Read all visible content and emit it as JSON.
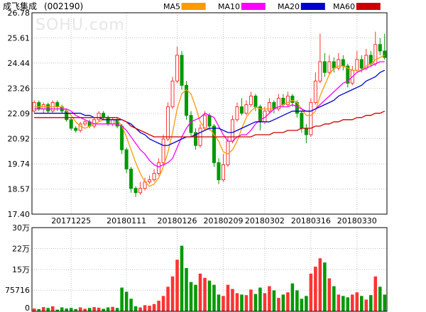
{
  "header": {
    "stock_name": "成飞集成",
    "stock_code": "(002190)",
    "watermark": "SOHU.com"
  },
  "legend": [
    {
      "label": "MA5",
      "color": "#ff9900"
    },
    {
      "label": "MA10",
      "color": "#ff00ff"
    },
    {
      "label": "MA20",
      "color": "#0000cc"
    },
    {
      "label": "MA60",
      "color": "#cc0000"
    }
  ],
  "colors": {
    "up": "#ff3333",
    "down": "#009900",
    "grid": "#bfbfbf",
    "border": "#000000"
  },
  "chart_data": [
    {
      "type": "candlestick",
      "title": "",
      "ylim": [
        17.4,
        26.78
      ],
      "y_ticks": [
        "26.78",
        "25.61",
        "24.44",
        "23.26",
        "22.09",
        "20.92",
        "19.74",
        "18.57",
        "17.40"
      ],
      "x_ticks": [
        {
          "label": "20171225",
          "index": 8
        },
        {
          "label": "20180111",
          "index": 20
        },
        {
          "label": "20180126",
          "index": 31
        },
        {
          "label": "20180209",
          "index": 41
        },
        {
          "label": "20180302",
          "index": 50
        },
        {
          "label": "20180316",
          "index": 60
        },
        {
          "label": "20180330",
          "index": 70
        }
      ],
      "candles": [
        [
          22.2,
          22.6,
          22.7,
          22.1
        ],
        [
          22.6,
          22.3,
          22.7,
          22.2
        ],
        [
          22.3,
          22.5,
          22.6,
          22.1
        ],
        [
          22.5,
          22.2,
          22.6,
          22.1
        ],
        [
          22.2,
          22.6,
          22.7,
          22.1
        ],
        [
          22.6,
          22.4,
          22.7,
          22.2
        ],
        [
          22.4,
          22.2,
          22.5,
          22.1
        ],
        [
          22.2,
          21.8,
          22.3,
          21.7
        ],
        [
          21.8,
          21.4,
          21.9,
          21.3
        ],
        [
          21.4,
          21.3,
          21.5,
          21.2
        ],
        [
          21.3,
          21.6,
          21.7,
          21.2
        ],
        [
          21.6,
          21.7,
          21.8,
          21.5
        ],
        [
          21.7,
          21.5,
          21.8,
          21.4
        ],
        [
          21.5,
          21.8,
          21.9,
          21.4
        ],
        [
          21.8,
          22.1,
          22.2,
          21.7
        ],
        [
          22.1,
          21.9,
          22.2,
          21.8
        ],
        [
          21.9,
          21.6,
          22.0,
          21.5
        ],
        [
          21.6,
          21.8,
          21.9,
          21.5
        ],
        [
          21.8,
          21.5,
          21.9,
          21.4
        ],
        [
          21.5,
          20.4,
          21.6,
          20.2
        ],
        [
          20.4,
          19.5,
          20.5,
          19.3
        ],
        [
          19.5,
          18.6,
          19.6,
          18.4
        ],
        [
          18.6,
          18.4,
          18.7,
          18.2
        ],
        [
          18.4,
          18.6,
          18.9,
          18.3
        ],
        [
          18.6,
          18.9,
          19.1,
          18.5
        ],
        [
          18.9,
          19.0,
          19.2,
          18.8
        ],
        [
          19.0,
          19.3,
          19.5,
          18.9
        ],
        [
          19.3,
          19.8,
          20.0,
          19.2
        ],
        [
          19.8,
          20.9,
          21.1,
          19.7
        ],
        [
          20.9,
          22.4,
          22.6,
          20.8
        ],
        [
          22.4,
          23.6,
          23.8,
          22.3
        ],
        [
          23.6,
          24.8,
          25.2,
          23.5
        ],
        [
          24.8,
          23.4,
          25.0,
          23.2
        ],
        [
          23.4,
          22.0,
          23.6,
          21.8
        ],
        [
          22.0,
          21.2,
          22.2,
          21.0
        ],
        [
          21.2,
          20.6,
          21.4,
          20.4
        ],
        [
          20.6,
          21.4,
          21.6,
          20.5
        ],
        [
          21.4,
          22.0,
          22.2,
          21.3
        ],
        [
          22.0,
          21.5,
          22.1,
          21.3
        ],
        [
          21.5,
          19.8,
          21.6,
          19.6
        ],
        [
          19.8,
          19.0,
          20.0,
          18.8
        ],
        [
          19.0,
          19.7,
          20.2,
          18.9
        ],
        [
          19.7,
          20.8,
          21.0,
          19.6
        ],
        [
          20.8,
          21.8,
          22.0,
          20.7
        ],
        [
          21.8,
          22.4,
          22.6,
          21.7
        ],
        [
          22.4,
          22.1,
          22.8,
          22.0
        ],
        [
          22.1,
          22.5,
          22.7,
          22.0
        ],
        [
          22.5,
          22.9,
          23.1,
          22.4
        ],
        [
          22.9,
          22.4,
          23.0,
          22.2
        ],
        [
          22.4,
          21.7,
          22.5,
          21.3
        ],
        [
          21.7,
          22.2,
          22.4,
          21.6
        ],
        [
          22.2,
          22.6,
          22.8,
          22.1
        ],
        [
          22.6,
          22.3,
          22.7,
          22.1
        ],
        [
          22.3,
          22.8,
          23.0,
          22.2
        ],
        [
          22.8,
          22.5,
          23.0,
          22.4
        ],
        [
          22.5,
          22.9,
          23.1,
          22.4
        ],
        [
          22.9,
          22.6,
          23.0,
          22.4
        ],
        [
          22.6,
          22.1,
          22.7,
          21.9
        ],
        [
          22.1,
          21.4,
          22.2,
          21.2
        ],
        [
          21.4,
          21.1,
          21.6,
          20.7
        ],
        [
          21.1,
          22.6,
          22.8,
          21.0
        ],
        [
          22.6,
          23.6,
          24.0,
          22.5
        ],
        [
          23.6,
          24.5,
          25.8,
          23.5
        ],
        [
          24.5,
          24.0,
          24.9,
          23.8
        ],
        [
          24.0,
          24.5,
          24.8,
          23.9
        ],
        [
          24.5,
          24.2,
          24.7,
          24.0
        ],
        [
          24.2,
          24.6,
          24.9,
          24.1
        ],
        [
          24.6,
          24.3,
          24.8,
          24.1
        ],
        [
          24.3,
          23.5,
          24.4,
          23.3
        ],
        [
          23.5,
          24.1,
          24.3,
          23.4
        ],
        [
          24.1,
          24.6,
          25.0,
          24.0
        ],
        [
          24.6,
          24.2,
          24.8,
          24.0
        ],
        [
          24.2,
          24.8,
          25.1,
          24.1
        ],
        [
          24.8,
          24.4,
          25.0,
          24.3
        ],
        [
          24.4,
          25.3,
          25.9,
          24.3
        ],
        [
          25.3,
          25.0,
          25.6,
          24.8
        ],
        [
          25.0,
          24.7,
          25.8,
          24.6
        ]
      ],
      "moving_averages": {
        "MA5": [
          22.4,
          22.4,
          22.4,
          22.4,
          22.4,
          22.4,
          22.4,
          22.2,
          22.0,
          21.7,
          21.5,
          21.4,
          21.5,
          21.6,
          21.7,
          21.8,
          21.8,
          21.8,
          21.8,
          21.5,
          21.0,
          20.4,
          19.8,
          19.3,
          18.9,
          18.7,
          18.8,
          19.1,
          19.6,
          20.3,
          21.2,
          22.3,
          23.0,
          23.2,
          23.0,
          22.4,
          21.7,
          21.4,
          21.4,
          21.1,
          20.8,
          20.3,
          20.2,
          20.4,
          20.8,
          21.4,
          21.9,
          22.2,
          22.4,
          22.3,
          22.3,
          22.3,
          22.3,
          22.4,
          22.5,
          22.6,
          22.7,
          22.6,
          22.3,
          22.0,
          22.0,
          22.2,
          22.9,
          23.4,
          23.9,
          24.2,
          24.3,
          24.3,
          24.2,
          24.1,
          24.1,
          24.1,
          24.3,
          24.4,
          24.6,
          24.7,
          24.8
        ],
        "MA10": [
          22.3,
          22.3,
          22.3,
          22.3,
          22.3,
          22.3,
          22.3,
          22.3,
          22.2,
          22.0,
          21.9,
          21.8,
          21.7,
          21.6,
          21.6,
          21.6,
          21.6,
          21.6,
          21.6,
          21.5,
          21.3,
          21.0,
          20.7,
          20.4,
          20.2,
          19.9,
          19.7,
          19.6,
          19.7,
          19.8,
          20.0,
          20.5,
          21.0,
          21.4,
          21.7,
          21.8,
          21.9,
          22.1,
          22.0,
          21.9,
          21.5,
          21.1,
          20.8,
          20.8,
          21.0,
          21.1,
          21.1,
          21.3,
          21.6,
          21.8,
          21.9,
          22.1,
          22.3,
          22.4,
          22.4,
          22.4,
          22.5,
          22.4,
          22.3,
          22.2,
          22.2,
          22.3,
          22.5,
          22.7,
          22.9,
          23.1,
          23.3,
          23.5,
          23.6,
          23.8,
          24.0,
          24.1,
          24.2,
          24.3,
          24.4,
          24.5,
          24.5
        ],
        "MA20": [
          22.1,
          22.1,
          22.1,
          22.1,
          22.1,
          22.1,
          22.1,
          22.1,
          22.1,
          22.1,
          22.1,
          22.0,
          22.0,
          21.9,
          21.9,
          21.8,
          21.8,
          21.8,
          21.8,
          21.8,
          21.7,
          21.6,
          21.4,
          21.2,
          21.1,
          20.9,
          20.8,
          20.7,
          20.6,
          20.6,
          20.7,
          20.8,
          20.9,
          21.0,
          21.0,
          21.1,
          21.2,
          21.3,
          21.4,
          21.4,
          21.4,
          21.3,
          21.2,
          21.2,
          21.3,
          21.4,
          21.5,
          21.6,
          21.7,
          21.7,
          21.7,
          21.7,
          21.8,
          21.9,
          22.0,
          22.1,
          22.2,
          22.2,
          22.2,
          22.2,
          22.2,
          22.3,
          22.4,
          22.5,
          22.6,
          22.7,
          22.9,
          23.0,
          23.1,
          23.2,
          23.3,
          23.4,
          23.6,
          23.7,
          23.8,
          24.0,
          24.1
        ],
        "MA60": [
          21.9,
          21.9,
          21.9,
          21.9,
          21.9,
          21.9,
          21.9,
          21.9,
          21.9,
          21.9,
          21.9,
          21.9,
          21.9,
          21.9,
          21.9,
          21.9,
          21.9,
          21.9,
          21.9,
          21.8,
          21.7,
          21.5,
          21.4,
          21.3,
          21.2,
          21.1,
          21.0,
          21.0,
          21.0,
          21.0,
          21.0,
          21.0,
          21.0,
          21.0,
          21.0,
          21.0,
          21.0,
          21.0,
          21.0,
          21.0,
          21.0,
          21.0,
          21.0,
          21.0,
          21.0,
          21.0,
          21.0,
          21.0,
          21.1,
          21.1,
          21.1,
          21.1,
          21.2,
          21.2,
          21.2,
          21.3,
          21.3,
          21.3,
          21.4,
          21.4,
          21.4,
          21.5,
          21.5,
          21.6,
          21.6,
          21.7,
          21.7,
          21.8,
          21.8,
          21.8,
          21.9,
          21.9,
          22.0,
          22.0,
          22.1,
          22.1,
          22.2
        ]
      }
    },
    {
      "type": "bar",
      "title": "",
      "ylim": [
        0,
        300000
      ],
      "y_ticks": [
        {
          "label": "30万",
          "value": 300000
        },
        {
          "label": "22万",
          "value": 225000
        },
        {
          "label": "15万",
          "value": 150000
        },
        {
          "label": "75716",
          "value": 75716
        },
        {
          "label": "0",
          "value": 0
        }
      ],
      "values": [
        10000,
        8000,
        15000,
        12000,
        18000,
        6000,
        14000,
        10000,
        12000,
        8000,
        14000,
        9000,
        12000,
        15000,
        13000,
        9000,
        14000,
        16000,
        12000,
        85000,
        70000,
        45000,
        18000,
        14000,
        22000,
        20000,
        26000,
        38000,
        55000,
        88000,
        125000,
        185000,
        235000,
        155000,
        105000,
        95000,
        135000,
        120000,
        110000,
        95000,
        60000,
        55000,
        95000,
        80000,
        65000,
        60000,
        58000,
        78000,
        62000,
        85000,
        65000,
        90000,
        75000,
        48000,
        60000,
        68000,
        100000,
        75000,
        45000,
        55000,
        135000,
        160000,
        190000,
        175000,
        118000,
        90000,
        60000,
        55000,
        50000,
        60000,
        68000,
        55000,
        42000,
        58000,
        125000,
        88000,
        60000
      ]
    }
  ]
}
